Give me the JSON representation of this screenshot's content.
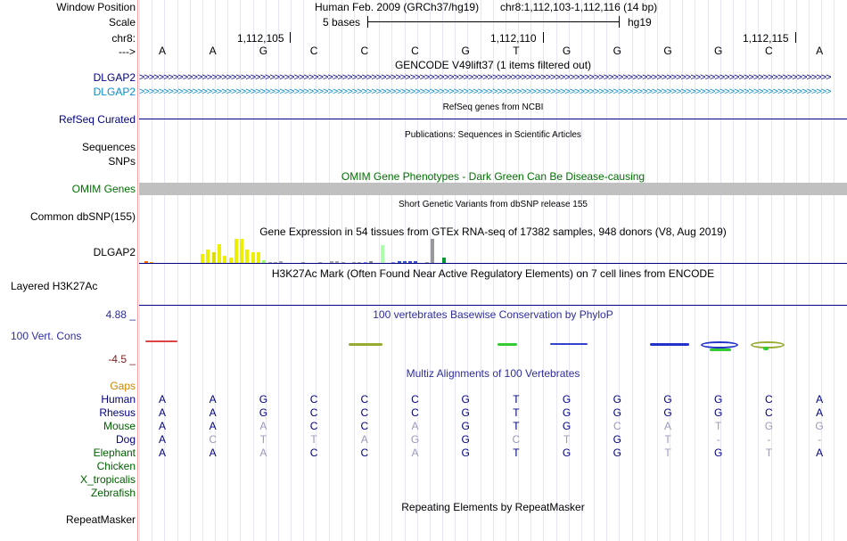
{
  "labels": {
    "window_position": "Window Position",
    "scale": "Scale",
    "chrom": "chr8:",
    "strand": "--->",
    "gencode_gene_1": "DLGAP2",
    "gencode_gene_2": "DLGAP2",
    "refseq": "RefSeq Curated",
    "sequences": "Sequences",
    "snps": "SNPs",
    "omim": "OMIM Genes",
    "common_snp": "Common dbSNP(155)",
    "gtex_gene": "DLGAP2",
    "h3k27ac": "Layered H3K27Ac",
    "cons_max": "4.88 _",
    "cons_name": "100 Vert. Cons",
    "cons_min": "-4.5 _",
    "gaps": "Gaps",
    "species": [
      "Human",
      "Rhesus",
      "Mouse",
      "Dog",
      "Elephant",
      "Chicken",
      "X_tropicalis",
      "Zebrafish"
    ],
    "repeatmasker": "RepeatMasker"
  },
  "header": {
    "assembly": "Human Feb. 2009 (GRCh37/hg19)",
    "position": "chr8:1,112,103-1,112,116 (14 bp)",
    "scale_text": "5 bases",
    "db": "hg19",
    "coords": [
      "1,112,105",
      "1,112,110",
      "1,112,115"
    ]
  },
  "sequence": [
    "A",
    "A",
    "G",
    "C",
    "C",
    "C",
    "G",
    "T",
    "G",
    "G",
    "G",
    "G",
    "C",
    "A"
  ],
  "tracks": {
    "gencode": "GENCODE V49lift37 (1 items filtered out)",
    "refseq": "RefSeq genes from NCBI",
    "publications": "Publications: Sequences in Scientific Articles",
    "omim": "OMIM Gene Phenotypes - Dark Green Can Be Disease-causing",
    "snp": "Short Genetic Variants from dbSNP release 155",
    "gtex": "Gene Expression in 54 tissues from GTEx RNA-seq of 17382 samples, 948 donors (V8, Aug 2019)",
    "h3k27ac": "H3K27Ac Mark (Often Found Near Active Regulatory Elements) on 7 cell lines from ENCODE",
    "phylop": "100 vertebrates Basewise Conservation by PhyloP",
    "multiz": "Multiz Alignments of 100 Vertebrates",
    "repeatmasker": "Repeating Elements by RepeatMasker"
  },
  "strand_arrows": {
    "gene1": ">>>>>>>>>>>>>>>>>>>>>>>>>>>>>>>>>>>>>>>>>>>>>>>>>>>>>>>>>>>>>>>>>>>>>>>>>>>>>>>>>>>>>>>>>>>>>>>>>>>>>>>>>>>>>>>>>>>>>>>>>>>>>>>>>>>>>>>>>>>>>>>",
    "gene2": ">>>>>>>>>>>>>>>>>>>>>>>>>>>>>>>>>>>>>>>>>>>>>>>>>>>>>>>>>>>>>>>>>>>>>>>>>>>>>>>>>>>>>>>>>>>>>>>>>>>>>>>>>>>>>>>>>>>>>>>>>>>>>>>>>>>>>>>>>>>>>>>"
  },
  "alignment": {
    "human": [
      "A",
      "A",
      "G",
      "C",
      "C",
      "C",
      "G",
      "T",
      "G",
      "G",
      "G",
      "G",
      "C",
      "A"
    ],
    "rhesus": [
      "A",
      "A",
      "G",
      "C",
      "C",
      "C",
      "G",
      "T",
      "G",
      "G",
      "G",
      "G",
      "C",
      "A"
    ],
    "mouse": [
      "A",
      "A",
      "A",
      "C",
      "C",
      "A",
      "G",
      "T",
      "G",
      "C",
      "A",
      "T",
      "G",
      "G"
    ],
    "dog": [
      "A",
      "C",
      "T",
      "T",
      "A",
      "G",
      "G",
      "C",
      "T",
      "G",
      "T",
      "-",
      "-",
      "-"
    ],
    "elephant": [
      "A",
      "A",
      "A",
      "C",
      "C",
      "A",
      "G",
      "T",
      "G",
      "G",
      "T",
      "G",
      "T",
      "A"
    ]
  },
  "gtex_values": [
    2,
    1,
    0,
    0,
    0,
    0,
    0,
    0,
    0,
    0,
    10,
    14,
    12,
    20,
    8,
    6,
    26,
    26,
    14,
    12,
    12,
    3,
    1,
    1,
    2,
    0,
    0,
    0,
    1,
    0,
    0,
    1,
    0,
    2,
    2,
    1,
    0,
    1,
    1,
    1,
    2,
    0,
    19,
    0,
    1,
    2,
    2,
    2,
    2,
    0,
    1,
    26,
    0,
    6
  ],
  "gtex_colors": [
    "#ff6600",
    "#ffaa00",
    "#bbbbbb",
    "#bbbbbb",
    "#bbbbbb",
    "#bbbbbb",
    "#bbbbbb",
    "#bbbbbb",
    "#bbbbbb",
    "#bbbbbb",
    "#eeee00",
    "#eeee00",
    "#dddd00",
    "#eeee00",
    "#eeee00",
    "#eeee00",
    "#eeee00",
    "#eeee00",
    "#eeee00",
    "#eeee00",
    "#eeee00",
    "#99ff66",
    "#aaaaaa",
    "#aaaaaa",
    "#aaaaaa",
    "#aaaaaa",
    "#aaaaaa",
    "#aaaaaa",
    "#aaaaaa",
    "#aaaaaa",
    "#aaaaaa",
    "#aaaaaa",
    "#aaaaaa",
    "#aaaaaa",
    "#aaaaaa",
    "#aaaaaa",
    "#aaaaaa",
    "#aaaaaa",
    "#aaaaaa",
    "#8888ff",
    "#888888",
    "#888888",
    "#aaffaa",
    "#888888",
    "#8888ff",
    "#3355cc",
    "#3355cc",
    "#3355cc",
    "#3355cc",
    "#aaaaaa",
    "#aaaaaa",
    "#999999",
    "#ffffff",
    "#009933"
  ],
  "colors": {
    "gene_blue": "#000080",
    "gene_teal": "#0c8cc7",
    "omim_green": "#007000",
    "omim_bar": "#c0c0c0",
    "phylop_blue": "#2e2e9c",
    "gaps_orange": "#cc8800",
    "species_green": "#006000",
    "mismatch_gray": "#9999bb"
  }
}
